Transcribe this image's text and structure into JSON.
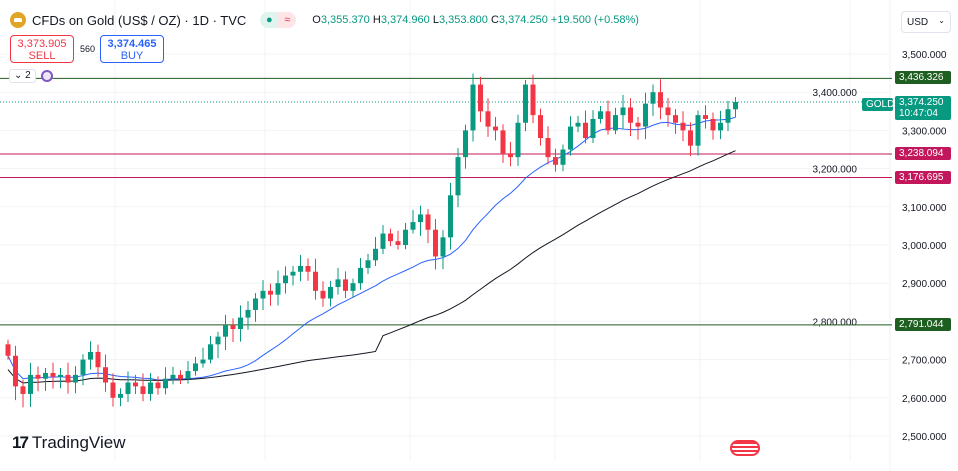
{
  "header": {
    "symbol": "CFDs on Gold (US$ / OZ) · 1D · TVC",
    "open_label": "O",
    "open": "3,355.370",
    "high_label": "H",
    "high": "3,374.960",
    "low_label": "L",
    "low": "3,353.800",
    "close_label": "C",
    "close": "3,374.250",
    "change": "+19.500 (+0.58%)"
  },
  "trade": {
    "sell_price": "3,373.905",
    "sell_label": "SELL",
    "spread": "560",
    "buy_price": "3,374.465",
    "buy_label": "BUY"
  },
  "indicators_toggle": "2",
  "currency": "USD",
  "price_labels": {
    "symbol_tag": "GOLD",
    "last": "3,374.250",
    "countdown": "10:47:04"
  },
  "levels": [
    {
      "value": 3436.326,
      "label": "3,436.326",
      "color": "#1e5e20"
    },
    {
      "value": 3238.094,
      "label": "3,238.094",
      "color": "#c2185b"
    },
    {
      "value": 3176.695,
      "label": "3,176.695",
      "color": "#c2185b"
    },
    {
      "value": 2791.044,
      "label": "2,791.044",
      "color": "#1e5e20"
    }
  ],
  "brand": "TradingView",
  "colors": {
    "up": "#089981",
    "down": "#f23645",
    "ma_fast": "#2962ff",
    "ma_slow": "#131722"
  },
  "chart_data": {
    "type": "candlestick",
    "ylim": [
      2450,
      3560
    ],
    "y_ticks": [
      2500,
      2600,
      2700,
      2800,
      2900,
      3000,
      3100,
      3200,
      3300,
      3400,
      3500
    ],
    "y_tick_labels": [
      "2,500.000",
      "2,600.000",
      "2,700.000",
      "2,800.000",
      "2,900.000",
      "3,000.000",
      "3,100.000",
      "3,200.000",
      "3,300.000",
      "3,400.000",
      "3,500.000"
    ],
    "first_open": 2740,
    "closes": [
      2710,
      2630,
      2610,
      2660,
      2650,
      2665,
      2655,
      2660,
      2640,
      2660,
      2700,
      2720,
      2680,
      2640,
      2600,
      2610,
      2640,
      2630,
      2610,
      2640,
      2625,
      2650,
      2660,
      2650,
      2670,
      2690,
      2700,
      2740,
      2760,
      2790,
      2780,
      2810,
      2830,
      2860,
      2880,
      2870,
      2900,
      2920,
      2930,
      2945,
      2930,
      2880,
      2860,
      2890,
      2910,
      2880,
      2900,
      2940,
      2960,
      2990,
      3030,
      3010,
      3000,
      3040,
      3060,
      3080,
      3040,
      2970,
      3020,
      3130,
      3230,
      3300,
      3420,
      3350,
      3310,
      3300,
      3240,
      3230,
      3320,
      3420,
      3340,
      3280,
      3230,
      3210,
      3250,
      3310,
      3320,
      3280,
      3330,
      3350,
      3300,
      3340,
      3360,
      3320,
      3310,
      3370,
      3400,
      3360,
      3340,
      3320,
      3300,
      3260,
      3340,
      3330,
      3300,
      3320,
      3355.37,
      3374.25
    ],
    "ma_fast_period": 20,
    "ma_slow_period": 50
  }
}
